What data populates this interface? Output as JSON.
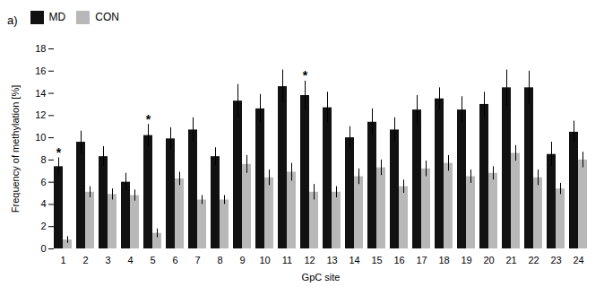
{
  "chart_data": {
    "type": "bar",
    "title": "a)",
    "xlabel": "GpC site",
    "ylabel": "Frequency of methylation [%]",
    "categories": [
      1,
      2,
      3,
      4,
      5,
      6,
      7,
      8,
      9,
      10,
      11,
      12,
      13,
      14,
      15,
      16,
      17,
      18,
      19,
      20,
      21,
      22,
      23,
      24
    ],
    "series": [
      {
        "name": "MD",
        "color": "#111111",
        "values": [
          7.4,
          9.6,
          8.3,
          6.0,
          10.2,
          9.9,
          10.7,
          8.3,
          13.3,
          12.6,
          14.6,
          13.8,
          12.7,
          10.0,
          11.4,
          10.7,
          12.5,
          13.5,
          12.5,
          13.0,
          14.5,
          14.5,
          8.5,
          10.5
        ],
        "errors": [
          0.8,
          1.0,
          0.9,
          0.8,
          1.0,
          1.0,
          1.1,
          0.8,
          1.5,
          1.3,
          1.5,
          1.3,
          1.4,
          1.0,
          1.2,
          1.1,
          1.3,
          1.0,
          1.2,
          1.1,
          1.6,
          1.5,
          1.1,
          1.0
        ]
      },
      {
        "name": "CON",
        "color": "#b8b8b8",
        "values": [
          0.8,
          5.1,
          4.9,
          4.8,
          1.4,
          6.3,
          4.4,
          4.4,
          7.6,
          6.4,
          6.9,
          5.1,
          5.1,
          6.5,
          7.3,
          5.6,
          7.2,
          7.7,
          6.5,
          6.8,
          8.6,
          6.4,
          5.4,
          8.0
        ],
        "errors": [
          0.3,
          0.5,
          0.5,
          0.5,
          0.4,
          0.6,
          0.4,
          0.4,
          0.8,
          0.7,
          0.8,
          0.7,
          0.5,
          0.7,
          0.7,
          0.6,
          0.7,
          0.7,
          0.6,
          0.6,
          0.7,
          0.7,
          0.5,
          0.7
        ]
      }
    ],
    "annotations": [
      {
        "text": "*",
        "category": 1,
        "series": "MD"
      },
      {
        "text": "*",
        "category": 5,
        "series": "MD"
      },
      {
        "text": "*",
        "category": 12,
        "series": "MD"
      }
    ],
    "ylim": [
      0,
      18
    ],
    "yticks": [
      0,
      2,
      4,
      6,
      8,
      10,
      12,
      14,
      16,
      18
    ],
    "grid": false,
    "legend": "upper left"
  }
}
